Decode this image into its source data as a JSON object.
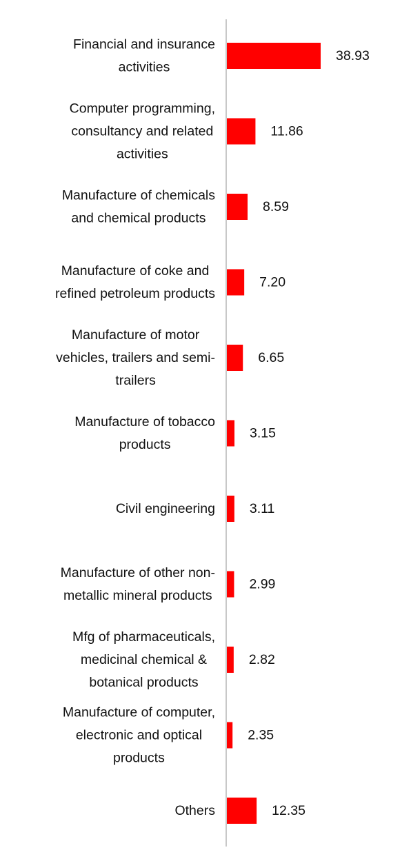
{
  "chart_data": {
    "type": "bar",
    "orientation": "horizontal",
    "title": "",
    "xlabel": "",
    "ylabel": "",
    "grid": false,
    "legend": "none",
    "bar_color": "#ff0000",
    "axis_color": "#c8c8c8",
    "categories": [
      [
        "Financial and insurance",
        "activities"
      ],
      [
        "Computer programming,",
        "consultancy and related",
        "activities"
      ],
      [
        "Manufacture of chemicals",
        "and chemical products"
      ],
      [
        "Manufacture of coke and",
        "refined petroleum products"
      ],
      [
        "Manufacture of motor",
        "vehicles, trailers and semi-",
        "trailers"
      ],
      [
        "Manufacture of tobacco",
        "products"
      ],
      [
        "Civil engineering"
      ],
      [
        "Manufacture of other non-",
        "metallic mineral products"
      ],
      [
        "Mfg of pharmaceuticals,",
        "medicinal chemical &",
        "botanical products"
      ],
      [
        "Manufacture of computer,",
        "electronic and optical",
        "products"
      ],
      [
        "Others"
      ]
    ],
    "values": [
      38.93,
      11.86,
      8.59,
      7.2,
      6.65,
      3.15,
      3.11,
      2.99,
      2.82,
      2.35,
      12.35
    ],
    "value_labels": [
      "38.93",
      "11.86",
      "8.59",
      "7.20",
      "6.65",
      "3.15",
      "3.11",
      "2.99",
      "2.82",
      "2.35",
      "12.35"
    ],
    "xlim": [
      0,
      38.93
    ]
  }
}
